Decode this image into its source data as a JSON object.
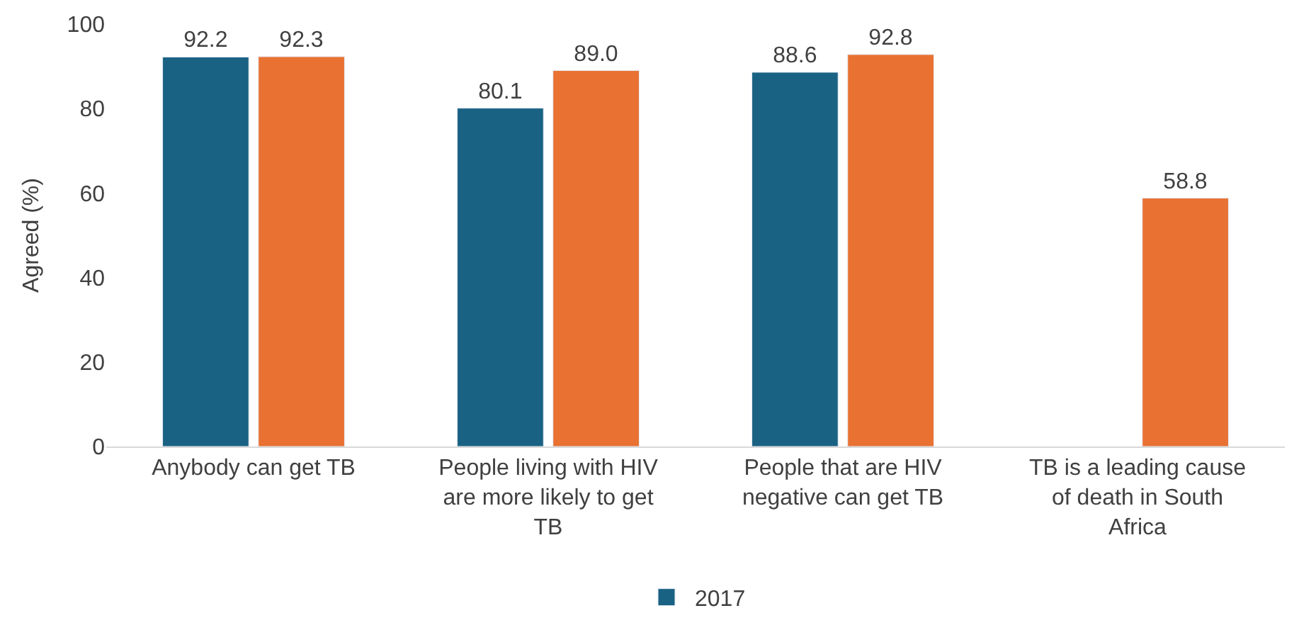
{
  "chart_data": {
    "type": "bar",
    "ylabel": "Agreed (%)",
    "categories": [
      "Anybody can get TB",
      "People living with HIV are more likely to get TB",
      "People that are HIV negative can get TB",
      "TB is a leading cause of death in South Africa"
    ],
    "series": [
      {
        "name": "2017",
        "color": "#1a6283",
        "values": [
          92.2,
          80.1,
          88.6,
          null
        ],
        "value_labels": [
          "92.2",
          "80.1",
          "88.6",
          null
        ]
      },
      {
        "color": "#e97132",
        "values": [
          92.3,
          89.0,
          92.8,
          58.8
        ],
        "value_labels": [
          "92.3",
          "89.0",
          "92.8",
          "58.8"
        ]
      }
    ],
    "ylim": [
      0,
      100
    ],
    "yticks": [
      0,
      20,
      40,
      60,
      80,
      100
    ],
    "legend": "bottom"
  }
}
